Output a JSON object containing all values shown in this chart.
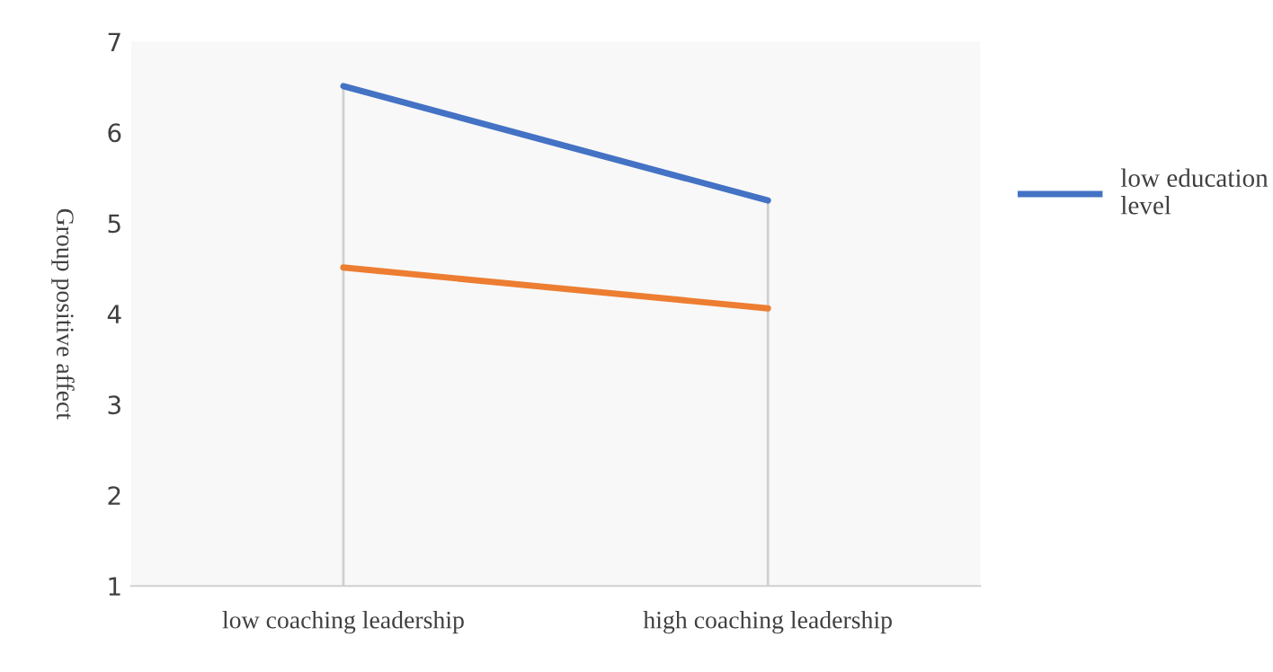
{
  "chart_data": {
    "type": "line",
    "ylabel": "Group positive affect",
    "categories": [
      "low coaching leadership",
      "high coaching leadership"
    ],
    "series": [
      {
        "name": "low education level",
        "color": "#4472c4",
        "values": [
          6.51,
          5.25
        ]
      },
      {
        "color": "#ed7d31",
        "values": [
          4.51,
          4.06
        ]
      }
    ],
    "ylim": [
      1,
      7
    ],
    "yticks": [
      1,
      2,
      3,
      4,
      5,
      6,
      7
    ],
    "grid": "x",
    "legend": "right",
    "marker": "none",
    "line_style": "solid"
  }
}
